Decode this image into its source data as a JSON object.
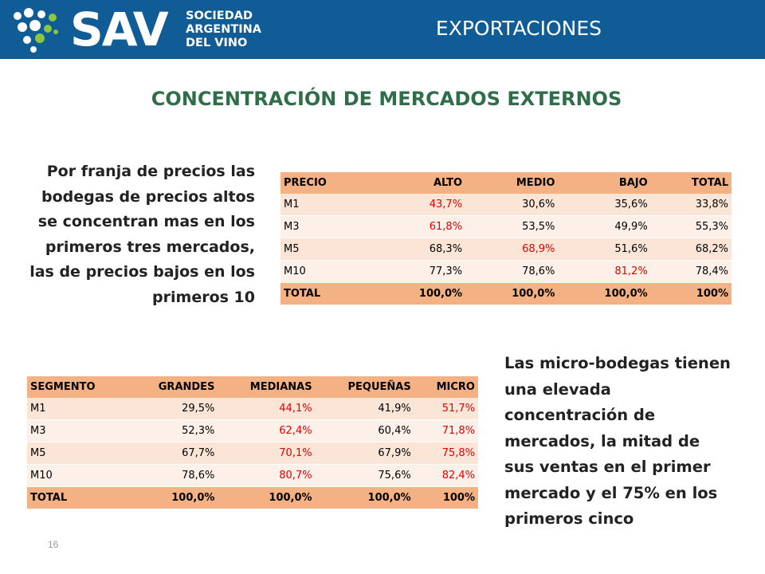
{
  "header": {
    "logo_main": "SAV",
    "logo_lines": [
      "SOCIEDAD",
      "ARGENTINA",
      "DEL VINO"
    ],
    "section": "EXPORTACIONES",
    "bg_color": "#0f5c96"
  },
  "title": "CONCENTRACIÓN DE MERCADOS EXTERNOS",
  "left_text": "Por franja de precios las bodegas de precios altos se concentran mas en los primeros tres mercados, las de precios bajos en los primeros 10",
  "right_text": "Las micro-bodegas tienen una elevada concentración de mercados, la mitad de sus ventas en el primer mercado y el 75% en los primeros cinco",
  "table_price": {
    "headers": [
      "PRECIO",
      "ALTO",
      "MEDIO",
      "BAJO",
      "TOTAL"
    ],
    "rows": [
      [
        "M1",
        "43,7%",
        "30,6%",
        "35,6%",
        "33,8%"
      ],
      [
        "M3",
        "61,8%",
        "53,5%",
        "49,9%",
        "55,3%"
      ],
      [
        "M5",
        "68,3%",
        "68,9%",
        "51,6%",
        "68,2%"
      ],
      [
        "M10",
        "77,3%",
        "78,6%",
        "81,2%",
        "78,4%"
      ]
    ],
    "total": [
      "TOTAL",
      "100,0%",
      "100,0%",
      "100,0%",
      "100%"
    ],
    "highlight": [
      [
        0,
        1
      ],
      [
        1,
        1
      ],
      [
        2,
        2
      ],
      [
        3,
        3
      ]
    ]
  },
  "table_segment": {
    "headers": [
      "SEGMENTO",
      "GRANDES",
      "MEDIANAS",
      "PEQUEÑAS",
      "MICRO"
    ],
    "rows": [
      [
        "M1",
        "29,5%",
        "44,1%",
        "41,9%",
        "51,7%"
      ],
      [
        "M3",
        "52,3%",
        "62,4%",
        "60,4%",
        "71,8%"
      ],
      [
        "M5",
        "67,7%",
        "70,1%",
        "67,9%",
        "75,8%"
      ],
      [
        "M10",
        "78,6%",
        "80,7%",
        "75,6%",
        "82,4%"
      ]
    ],
    "total": [
      "TOTAL",
      "100,0%",
      "100,0%",
      "100,0%",
      "100%"
    ],
    "highlight": [
      [
        0,
        2
      ],
      [
        0,
        4
      ],
      [
        1,
        2
      ],
      [
        1,
        4
      ],
      [
        2,
        2
      ],
      [
        2,
        4
      ],
      [
        3,
        2
      ],
      [
        3,
        4
      ]
    ]
  },
  "colors": {
    "header_fill": "#f4b183",
    "row_fill_even": "#fbe5d6",
    "row_fill_odd": "#fdf0e8",
    "highlight_text": "#e00000",
    "title_green": "#2f6e49"
  },
  "page_number": "16"
}
